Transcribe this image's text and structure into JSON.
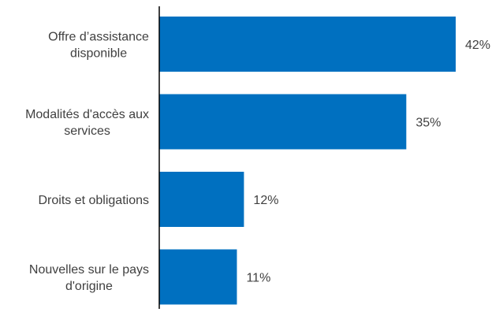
{
  "chart_data": {
    "type": "bar",
    "orientation": "horizontal",
    "categories": [
      [
        "Offre d’assistance",
        "disponible"
      ],
      [
        "Modalités d'accès aux",
        "services"
      ],
      [
        "Droits et obligations"
      ],
      [
        "Nouvelles sur le pays",
        "d'origine"
      ]
    ],
    "values": [
      42,
      35,
      12,
      11
    ],
    "value_labels": [
      "42%",
      "35%",
      "12%",
      "11%"
    ],
    "unit": "%",
    "bar_color": "#0070C0",
    "axis_color": "#000000",
    "text_color": "#404040",
    "grid": false,
    "legend": "none",
    "xlim": [
      0,
      42
    ]
  }
}
